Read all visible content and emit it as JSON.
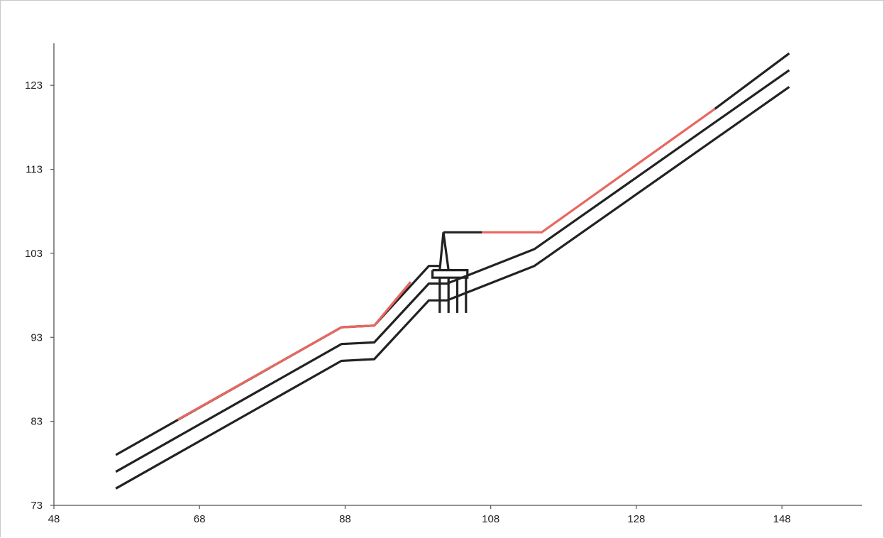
{
  "chart_data": {
    "type": "line",
    "title": "",
    "xlabel": "",
    "ylabel": "",
    "xlim": [
      48,
      159
    ],
    "ylim": [
      73,
      128
    ],
    "xticks": [
      48,
      68,
      88,
      108,
      128,
      148
    ],
    "yticks": [
      73,
      83,
      93,
      103,
      113,
      123
    ],
    "grid": false,
    "colors": {
      "line": "#222222",
      "highlight": "#e8675f",
      "axis": "#555555"
    },
    "series": [
      {
        "color": "#222222",
        "points": [
          [
            56.5,
            79
          ],
          [
            87.5,
            94.2
          ],
          [
            92,
            94.4
          ],
          [
            99.5,
            101.5
          ],
          [
            101,
            101.5
          ]
        ]
      },
      {
        "color": "#222222",
        "points": [
          [
            56.5,
            77
          ],
          [
            87.5,
            92.2
          ],
          [
            92,
            92.4
          ],
          [
            99.5,
            99.4
          ],
          [
            102,
            99.4
          ],
          [
            114,
            103.5
          ],
          [
            149,
            124.8
          ]
        ]
      },
      {
        "color": "#222222",
        "points": [
          [
            56.5,
            75
          ],
          [
            87.5,
            90.2
          ],
          [
            92,
            90.4
          ],
          [
            99.5,
            97.4
          ],
          [
            102,
            97.4
          ],
          [
            114,
            101.5
          ],
          [
            149,
            122.8
          ]
        ]
      },
      {
        "color": "#222222",
        "points": [
          [
            101.5,
            105.5
          ],
          [
            106.8,
            105.5
          ]
        ]
      },
      {
        "color": "#222222",
        "points": [
          [
            138.8,
            120.2
          ],
          [
            149,
            126.8
          ]
        ]
      },
      {
        "color": "#e8675f",
        "points": [
          [
            65,
            83.2
          ],
          [
            87.5,
            94.2
          ],
          [
            92,
            94.4
          ],
          [
            97,
            99.6
          ]
        ]
      },
      {
        "color": "#e8675f",
        "points": [
          [
            106.8,
            105.5
          ],
          [
            115,
            105.5
          ],
          [
            138.8,
            120.2
          ]
        ]
      },
      {
        "color": "#222222",
        "points": [
          [
            101.5,
            105.5
          ],
          [
            101,
            101
          ]
        ]
      },
      {
        "color": "#222222",
        "points": [
          [
            101.5,
            105.5
          ],
          [
            102.2,
            101
          ]
        ]
      },
      {
        "color": "#222222",
        "points": [
          [
            100,
            101
          ],
          [
            104.8,
            101
          ],
          [
            104.8,
            100.1
          ],
          [
            100,
            100.1
          ],
          [
            100,
            101
          ]
        ]
      },
      {
        "color": "#222222",
        "points": [
          [
            101,
            100
          ],
          [
            101,
            95.9
          ]
        ]
      },
      {
        "color": "#222222",
        "points": [
          [
            102.2,
            100
          ],
          [
            102.2,
            95.9
          ]
        ]
      },
      {
        "color": "#222222",
        "points": [
          [
            103.4,
            100
          ],
          [
            103.4,
            95.9
          ]
        ]
      },
      {
        "color": "#222222",
        "points": [
          [
            104.6,
            100
          ],
          [
            104.6,
            95.9
          ]
        ]
      }
    ]
  }
}
